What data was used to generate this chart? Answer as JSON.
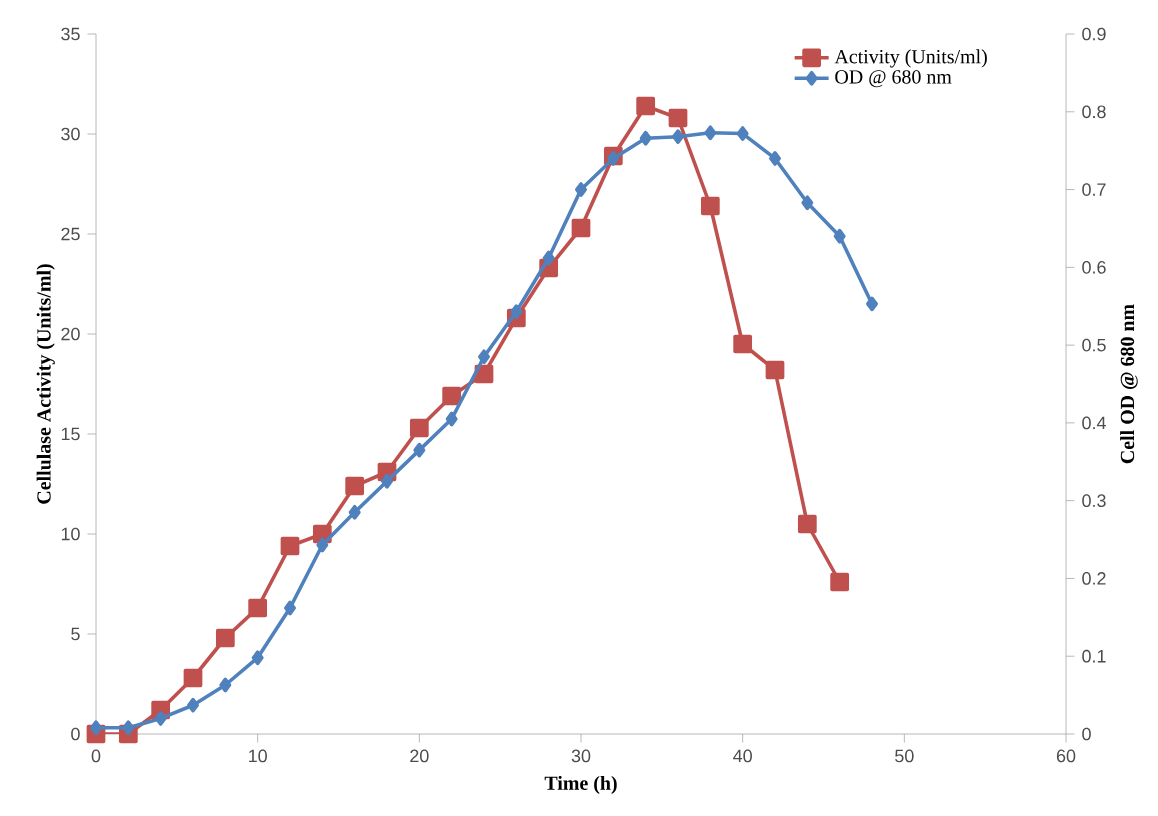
{
  "chart_data": {
    "type": "line",
    "xlabel": "Time (h)",
    "ylabel": "Cellulase Activity (Units/ml)",
    "y2label": "Cell OD @ 680 nm",
    "xlim": [
      0,
      60
    ],
    "xticks": [
      0,
      10,
      20,
      30,
      40,
      50,
      60
    ],
    "ylim": [
      0,
      35
    ],
    "yticks": [
      0,
      5,
      10,
      15,
      20,
      25,
      30,
      35
    ],
    "y2lim": [
      0,
      0.9
    ],
    "y2ticks": [
      0,
      0.1,
      0.2,
      0.3,
      0.4,
      0.5,
      0.6,
      0.7,
      0.8,
      0.9
    ],
    "legend": "top right",
    "line_style": "solid",
    "series": [
      {
        "name": "Activity (Units/ml)",
        "color": "#c0504d",
        "marker": "square",
        "x": [
          0,
          2,
          4,
          6,
          8,
          10,
          12,
          14,
          16,
          18,
          20,
          22,
          24,
          26,
          28,
          30,
          32,
          34,
          36,
          38,
          40,
          42,
          44,
          46
        ],
        "values": [
          0,
          0,
          1.2,
          2.8,
          4.8,
          6.3,
          9.4,
          10.0,
          12.4,
          13.1,
          15.3,
          16.9,
          18.0,
          20.8,
          23.3,
          25.3,
          28.9,
          31.4,
          30.8,
          26.4,
          19.5,
          18.2,
          10.5,
          7.6
        ]
      },
      {
        "name": "OD @ 680 nm",
        "color": "#4f81bd",
        "marker": "diamond",
        "axis": "y2",
        "x": [
          0,
          2,
          4,
          6,
          8,
          10,
          12,
          14,
          16,
          18,
          20,
          22,
          24,
          26,
          28,
          30,
          32,
          34,
          36,
          38,
          40,
          42,
          44,
          46,
          48
        ],
        "values": [
          0.008,
          0.008,
          0.02,
          0.037,
          0.063,
          0.098,
          0.162,
          0.243,
          0.285,
          0.325,
          0.365,
          0.405,
          0.485,
          0.543,
          0.612,
          0.7,
          0.74,
          0.766,
          0.768,
          0.773,
          0.772,
          0.74,
          0.683,
          0.64,
          0.553
        ]
      }
    ]
  }
}
